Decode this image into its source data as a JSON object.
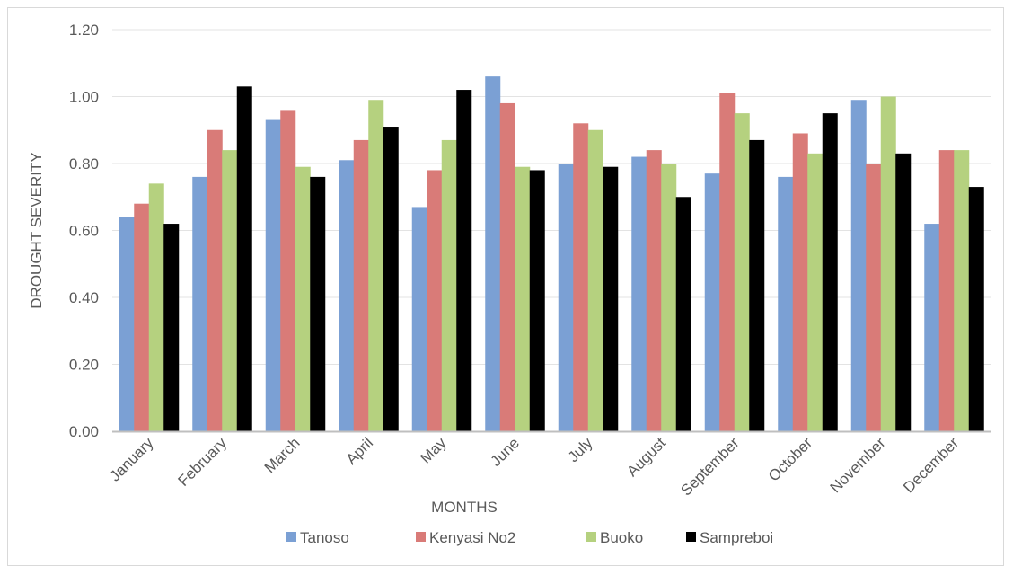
{
  "chart_data": {
    "type": "bar",
    "title": "",
    "xlabel": "MONTHS",
    "ylabel": "DROUGHT SEVERITY",
    "ylim": [
      0,
      1.2
    ],
    "yticks": [
      "0.00",
      "0.20",
      "0.40",
      "0.60",
      "0.80",
      "1.00",
      "1.20"
    ],
    "grid": true,
    "legend_position": "bottom",
    "categories": [
      "January",
      "February",
      "March",
      "April",
      "May",
      "June",
      "July",
      "August",
      "September",
      "October",
      "November",
      "December"
    ],
    "series": [
      {
        "name": "Tanoso",
        "color": "#7ba0d4",
        "values": [
          0.64,
          0.76,
          0.93,
          0.81,
          0.67,
          1.06,
          0.8,
          0.82,
          0.77,
          0.76,
          0.99,
          0.62
        ]
      },
      {
        "name": "Kenyasi No2",
        "color": "#d97b78",
        "values": [
          0.68,
          0.9,
          0.96,
          0.87,
          0.78,
          0.98,
          0.92,
          0.84,
          1.01,
          0.89,
          0.8,
          0.84
        ]
      },
      {
        "name": "Buoko",
        "color": "#b5d17f",
        "values": [
          0.74,
          0.84,
          0.79,
          0.99,
          0.87,
          0.79,
          0.9,
          0.8,
          0.95,
          0.83,
          1.0,
          0.84
        ]
      },
      {
        "name": "Sampreboi",
        "color": "#000000",
        "values": [
          0.62,
          1.03,
          0.76,
          0.91,
          1.02,
          0.78,
          0.79,
          0.7,
          0.87,
          0.95,
          0.83,
          0.73
        ]
      }
    ]
  }
}
